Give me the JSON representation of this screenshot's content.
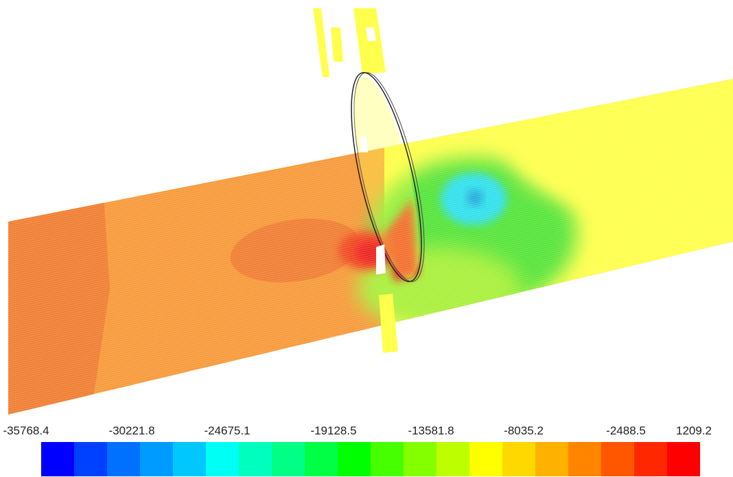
{
  "legend": {
    "labels": [
      "-35768.4",
      "-30221.8",
      "-24675.1",
      "-19128.5",
      "-13581.8",
      "-8035.2",
      "-2488.5",
      "1209.2"
    ],
    "colors": [
      "#0000ff",
      "#0041ff",
      "#0070ff",
      "#009bff",
      "#00c8ff",
      "#00fff4",
      "#00ffbf",
      "#00ff84",
      "#00ff45",
      "#00ff00",
      "#46ff00",
      "#84ff00",
      "#bdff00",
      "#ffff00",
      "#ffd800",
      "#ffb100",
      "#ff8400",
      "#ff5600",
      "#ff2700",
      "#ff0000"
    ]
  },
  "field_colors": {
    "inlet_far": "#f07f33",
    "inlet": "#f79a3a",
    "inlet_near": "#f9ab3f",
    "outlet": "#ffff4d",
    "wake_green": "#57e43a",
    "wake_mid": "#a9f03b",
    "vortex_cyan": "#33e0ec",
    "vortex_core": "#22a9d9",
    "stagnation": "#ee2020",
    "stagnation_inner": "#f04a23"
  }
}
